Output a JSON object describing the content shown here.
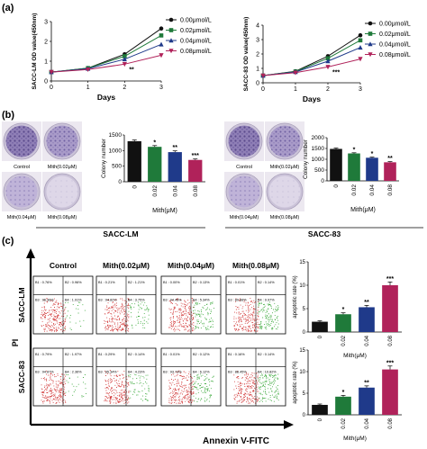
{
  "panels": {
    "a": "(a)",
    "b": "(b)",
    "c": "(c)"
  },
  "colors": {
    "c0": "#111111",
    "c1": "#1f7a3a",
    "c2": "#1f3a8a",
    "c3": "#b0225a",
    "flowRed": "#d23a3a",
    "flowGreen": "#3aa83a"
  },
  "chart_data": [
    {
      "id": "a-left",
      "type": "line",
      "ylabel": "SACC-LM OD value(450nm)",
      "xlabel": "Days",
      "x": [
        0,
        1,
        2,
        3
      ],
      "xlim": [
        0,
        3
      ],
      "ylim": [
        0,
        3
      ],
      "xticks": [
        "0",
        "1",
        "2",
        "3"
      ],
      "yticks": [
        "0",
        "1",
        "2",
        "3"
      ],
      "legend": "top-right",
      "annotation": "**",
      "series": [
        {
          "name": "0.00μmol/L",
          "values": [
            0.45,
            0.65,
            1.35,
            2.65
          ]
        },
        {
          "name": "0.02μmol/L",
          "values": [
            0.45,
            0.65,
            1.25,
            2.3
          ]
        },
        {
          "name": "0.04μmol/L",
          "values": [
            0.45,
            0.62,
            1.1,
            1.85
          ]
        },
        {
          "name": "0.08μmol/L",
          "values": [
            0.45,
            0.58,
            0.85,
            1.3
          ]
        }
      ]
    },
    {
      "id": "a-right",
      "type": "line",
      "ylabel": "SACC-83 OD value(450nm)",
      "xlabel": "Days",
      "x": [
        0,
        1,
        2,
        3
      ],
      "xlim": [
        0,
        3
      ],
      "ylim": [
        0,
        4
      ],
      "xticks": [
        "0",
        "1",
        "2",
        "3"
      ],
      "yticks": [
        "0",
        "1",
        "2",
        "3",
        "4"
      ],
      "legend": "top-right",
      "annotation": "***",
      "series": [
        {
          "name": "0.00μmol/L",
          "values": [
            0.5,
            0.8,
            1.85,
            3.3
          ]
        },
        {
          "name": "0.02μmol/L",
          "values": [
            0.5,
            0.78,
            1.7,
            2.95
          ]
        },
        {
          "name": "0.04μmol/L",
          "values": [
            0.5,
            0.75,
            1.5,
            2.45
          ]
        },
        {
          "name": "0.08μmol/L",
          "values": [
            0.5,
            0.7,
            1.1,
            1.65
          ]
        }
      ]
    },
    {
      "id": "b-left",
      "type": "bar",
      "ylabel": "Colony number",
      "xlabel": "Mith(μM)",
      "categories": [
        "0",
        "0.02",
        "0.04",
        "0.08"
      ],
      "values": [
        1300,
        1120,
        950,
        700
      ],
      "errors": [
        40,
        40,
        40,
        30
      ],
      "sig": [
        "",
        "*",
        "**",
        "***"
      ],
      "ylim": [
        0,
        1500
      ],
      "yticks": [
        "0",
        "500",
        "1000",
        "1500"
      ]
    },
    {
      "id": "b-right",
      "type": "bar",
      "ylabel": "Colony number",
      "xlabel": "Mith(μM)",
      "categories": [
        "0",
        "0.02",
        "0.04",
        "0.08"
      ],
      "values": [
        1480,
        1270,
        1070,
        860
      ],
      "errors": [
        40,
        30,
        30,
        30
      ],
      "sig": [
        "",
        "*",
        "*",
        "**"
      ],
      "ylim": [
        0,
        2000
      ],
      "yticks": [
        "0",
        "500",
        "1000",
        "1500",
        "2000"
      ]
    },
    {
      "id": "c-top",
      "type": "bar",
      "ylabel": "apoptotic rate (%)",
      "xlabel": "Mith(μM)",
      "categories": [
        "0",
        "0.02",
        "0.04",
        "0.08"
      ],
      "values": [
        2.2,
        3.8,
        5.3,
        10
      ],
      "errors": [
        0.2,
        0.3,
        0.4,
        0.7
      ],
      "sig": [
        "",
        "*",
        "**",
        "***"
      ],
      "ylim": [
        0,
        15
      ],
      "yticks": [
        "0",
        "5",
        "10",
        "15"
      ]
    },
    {
      "id": "c-bottom",
      "type": "bar",
      "ylabel": "apoptotic rate (%)",
      "xlabel": "Mith(μM)",
      "categories": [
        "0",
        "0.02",
        "0.04",
        "0.08"
      ],
      "values": [
        2.3,
        4.2,
        6.3,
        10.5
      ],
      "errors": [
        0.2,
        0.3,
        0.4,
        0.8
      ],
      "sig": [
        "",
        "*",
        "**",
        "***"
      ],
      "ylim": [
        0,
        15
      ],
      "yticks": [
        "0",
        "5",
        "10",
        "15"
      ]
    }
  ],
  "colony": {
    "left": {
      "labels": [
        "Control",
        "Mith(0.02μM)",
        "Mith(0.04μM)",
        "Mith(0.08μM)"
      ],
      "density": [
        1,
        0.85,
        0.7,
        0.15
      ],
      "cell": "SACC-LM"
    },
    "right": {
      "labels": [
        "Control",
        "Mith(0.02μM)",
        "Mith(0.04μM)",
        "Mith(0.08μM)"
      ],
      "density": [
        1,
        0.85,
        0.7,
        0.2
      ],
      "cell": "SACC-83"
    }
  },
  "flow": {
    "columns": [
      "Control",
      "Mith(0.02μM)",
      "Mith(0.04μM)",
      "Mith(0.08μM)"
    ],
    "rows": [
      "SACC-LM",
      "SACC-83"
    ],
    "yaxis": "PI",
    "xaxis": "Annexin V-FITC",
    "quadrants": [
      [
        [
          "B1 : 0.76%",
          "B2 : 0.96%",
          "B3 : 96.36%",
          "B4 : 1.91%"
        ],
        [
          "B1 : 0.21%",
          "B2 : 1.21%",
          "B3 : 94.82%",
          "B4 : 3.75%"
        ],
        [
          "B1 : 0.00%",
          "B2 : 0.13%",
          "B3 : 94.45%",
          "B4 : 5.34%"
        ],
        [
          "B1 : 0.01%",
          "B2 : 0.14%",
          "B3 : 89.88%",
          "B4 : 9.97%"
        ]
      ],
      [
        [
          "B1 : 0.79%",
          "B2 : 1.97%",
          "B3 : 94.87%",
          "B4 : 2.36%"
        ],
        [
          "B1 : 0.29%",
          "B2 : 0.14%",
          "B3 : 95.34%",
          "B4 : 4.23%"
        ],
        [
          "B1 : 0.01%",
          "B2 : 0.12%",
          "B3 : 93.73%",
          "B4 : 6.12%"
        ],
        [
          "B1 : 0.16%",
          "B2 : 0.14%",
          "B3 : 88.45%",
          "B4 : 10.82%"
        ]
      ]
    ]
  }
}
